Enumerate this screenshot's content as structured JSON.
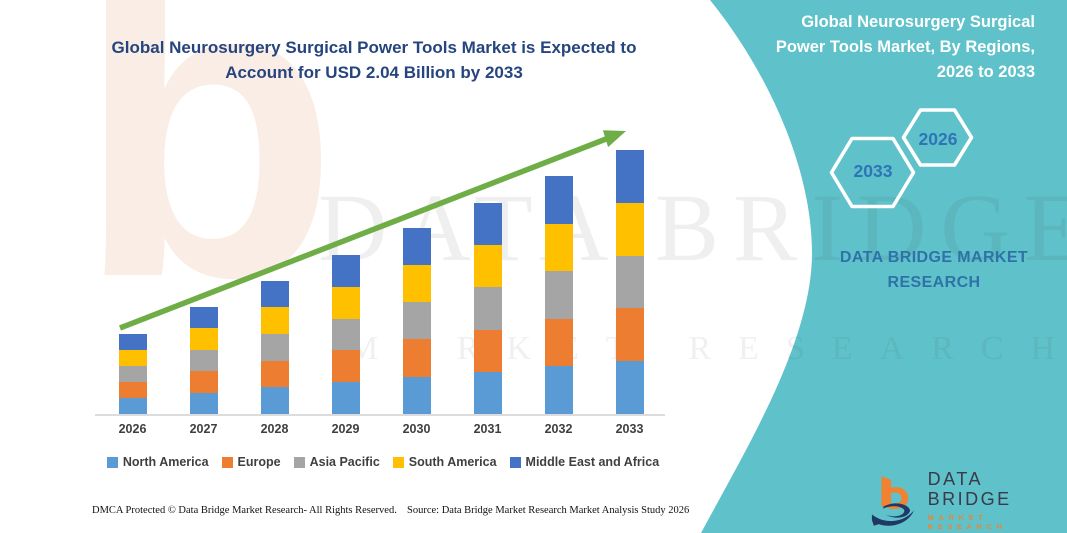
{
  "colors": {
    "teal_panel": "#5fc1c9",
    "title_navy": "#26457e",
    "arrow_green": "#6fad47",
    "hex_year_blue": "#2e75b6",
    "axis_gray": "#dcdcdc",
    "label_gray": "#3f3f3f"
  },
  "main_title": "Global Neurosurgery Surgical Power Tools Market is Expected to Account for USD 2.04 Billion by 2033",
  "chart_data": {
    "type": "bar",
    "stacked": true,
    "title": "Global Neurosurgery Surgical Power Tools Market is Expected to Account for USD 2.04 Billion by 2033",
    "unit": "USD Billion",
    "categories": [
      "2026",
      "2027",
      "2028",
      "2029",
      "2030",
      "2031",
      "2032",
      "2033"
    ],
    "series": [
      {
        "name": "North America",
        "color": "#5b9bd5",
        "values": [
          0.124,
          0.166,
          0.206,
          0.246,
          0.288,
          0.326,
          0.368,
          0.408
        ]
      },
      {
        "name": "Europe",
        "color": "#ed7d31",
        "values": [
          0.124,
          0.166,
          0.206,
          0.246,
          0.288,
          0.326,
          0.368,
          0.408
        ]
      },
      {
        "name": "Asia Pacific",
        "color": "#a5a5a5",
        "values": [
          0.124,
          0.166,
          0.206,
          0.246,
          0.288,
          0.326,
          0.368,
          0.408
        ]
      },
      {
        "name": "South America",
        "color": "#ffc000",
        "values": [
          0.124,
          0.166,
          0.206,
          0.246,
          0.288,
          0.326,
          0.368,
          0.408
        ]
      },
      {
        "name": "Middle East and Africa",
        "color": "#4472c4",
        "values": [
          0.124,
          0.166,
          0.206,
          0.246,
          0.288,
          0.326,
          0.368,
          0.408
        ]
      }
    ],
    "totals": [
      0.62,
      0.83,
      1.03,
      1.23,
      1.44,
      1.63,
      1.84,
      2.04
    ],
    "xlabel": "",
    "ylabel": "",
    "grid": false,
    "legend_position": "bottom",
    "annotations": [
      "upward green trend arrow across bar tops"
    ]
  },
  "right_panel": {
    "title": "Global Neurosurgery Surgical Power Tools Market, By Regions, 2026 to 2033",
    "hexagons": [
      {
        "year": "2033"
      },
      {
        "year": "2026"
      }
    ],
    "brand": "DATA BRIDGE MARKET RESEARCH"
  },
  "watermark": {
    "line1": "DATA BRIDGE",
    "line2": "MARKET RESEARCH"
  },
  "logo": {
    "name": "DATA BRIDGE",
    "tagline": "MARKET RESEARCH"
  },
  "footer": {
    "dmca": "DMCA Protected © Data Bridge Market Research-  All Rights Reserved.",
    "source": "Source: Data Bridge Market Research  Market Analysis Study 2026"
  }
}
